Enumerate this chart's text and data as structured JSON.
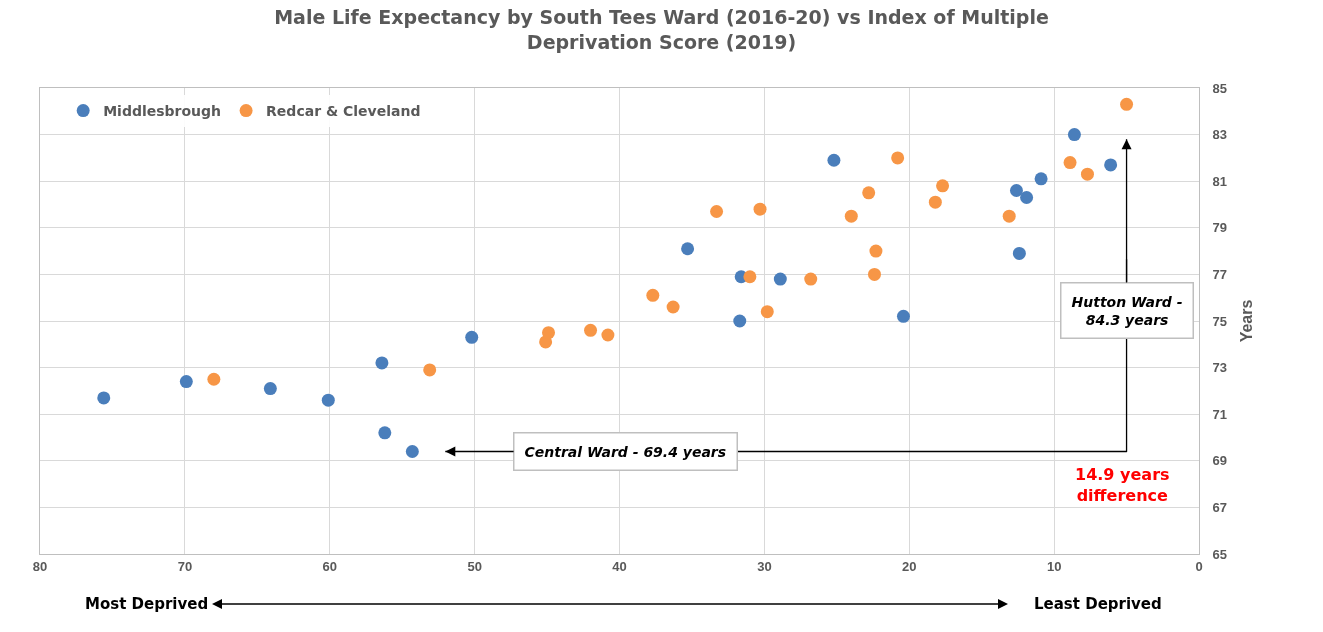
{
  "chart_data": {
    "type": "scatter",
    "title": "Male Life Expectancy by South Tees Ward (2016-20) vs Index of Multiple Deprivation Score (2019)",
    "ylabel": "Years",
    "xlim": [
      80,
      0
    ],
    "xticks": [
      80,
      70,
      60,
      50,
      40,
      30,
      20,
      10,
      0
    ],
    "ylim": [
      65,
      85
    ],
    "yticks": [
      65,
      67,
      69,
      71,
      73,
      75,
      77,
      79,
      81,
      83,
      85
    ],
    "grid": true,
    "legend": "top left",
    "marker": "circle",
    "series": [
      {
        "name": "Middlesbrough",
        "color": "#4a7ebb",
        "x": [
          75.6,
          69.9,
          64.1,
          60.1,
          56.4,
          56.2,
          54.3,
          50.2,
          35.3,
          31.6,
          28.9,
          31.7,
          25.2,
          20.4,
          12.6,
          11.9,
          10.9,
          12.4,
          8.6,
          6.1
        ],
        "values": [
          71.7,
          72.4,
          72.1,
          71.6,
          73.2,
          70.2,
          69.4,
          74.3,
          78.1,
          76.9,
          76.8,
          75.0,
          81.9,
          75.2,
          80.6,
          80.3,
          81.1,
          77.9,
          83.0,
          81.7
        ]
      },
      {
        "name": "Redcar & Cleveland",
        "color": "#f79646",
        "x": [
          68.0,
          53.1,
          45.1,
          44.9,
          42.0,
          40.8,
          37.7,
          36.3,
          33.3,
          30.3,
          31.0,
          29.8,
          26.8,
          24.0,
          22.8,
          22.3,
          22.4,
          20.8,
          18.2,
          17.7,
          13.1,
          8.9,
          7.7,
          5.0
        ],
        "values": [
          72.5,
          72.9,
          74.1,
          74.5,
          74.6,
          74.4,
          76.1,
          75.6,
          79.7,
          79.8,
          76.9,
          75.4,
          76.8,
          79.5,
          80.5,
          78.0,
          77.0,
          82.0,
          80.1,
          80.8,
          79.5,
          81.8,
          81.3,
          84.3
        ]
      }
    ],
    "annotations": [
      {
        "text": "Central Ward - 69.4 years",
        "x": 54.3,
        "y": 69.4
      },
      {
        "text": "Hutton Ward - 84.3 years",
        "x": 5.0,
        "y": 84.3
      },
      "14.9 years difference",
      "Most Deprived",
      "Least Deprived"
    ]
  }
}
